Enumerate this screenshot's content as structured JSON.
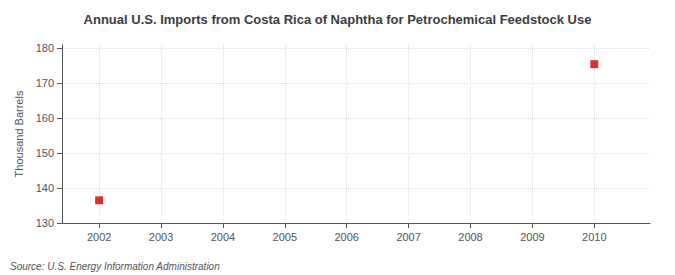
{
  "chart_data": {
    "type": "scatter",
    "title": "Annual U.S. Imports from Costa Rica of Naphtha for Petrochemical Feedstock Use",
    "ylabel": "Thousand Barrels",
    "annotations": [
      "Source: U.S. Energy Information Administration"
    ],
    "x": [
      2002,
      2010
    ],
    "values": [
      136.5,
      175.5
    ],
    "color": "#cc0000",
    "marker": "square",
    "xlim": [
      2001.4,
      2010.9
    ],
    "ylim": [
      130,
      181
    ],
    "xticks": [
      2002,
      2003,
      2004,
      2005,
      2006,
      2007,
      2008,
      2009,
      2010
    ],
    "yticks": [
      130,
      140,
      150,
      160,
      170,
      180
    ],
    "grid": true
  }
}
